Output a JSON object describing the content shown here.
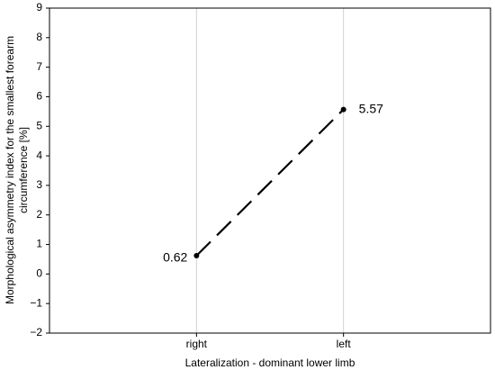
{
  "chart_data": {
    "type": "line",
    "xlabel": "Lateralization - dominant lower limb",
    "ylabel": [
      "Morphological asymmetry index for the smallest forearm",
      "circumference [%]"
    ],
    "categories": [
      "right",
      "left"
    ],
    "values": [
      0.62,
      5.57
    ],
    "color": "#000000",
    "ylim": [
      -2,
      9
    ],
    "yticks": [
      {
        "value": -2,
        "label": "−2"
      },
      {
        "value": -1,
        "label": "−1"
      },
      0,
      1,
      2,
      3,
      4,
      5,
      6,
      7,
      8,
      9
    ],
    "grid": true
  }
}
